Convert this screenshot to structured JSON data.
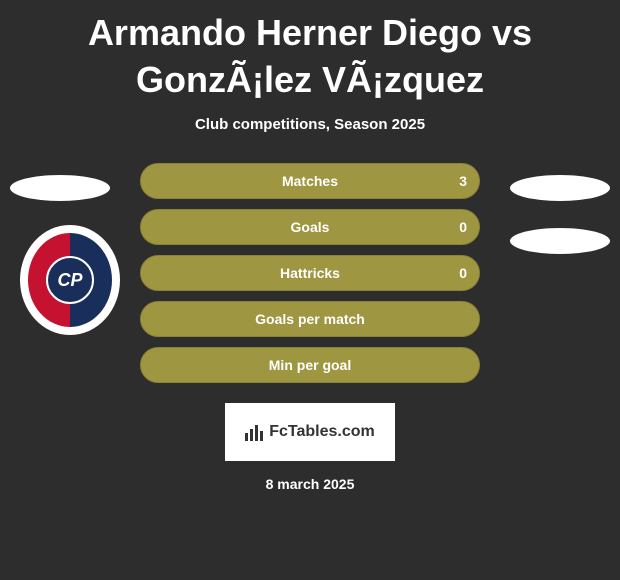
{
  "title": "Armando Herner Diego vs GonzÃ¡lez VÃ¡zquez",
  "subtitle": "Club competitions, Season 2025",
  "stats": [
    {
      "label": "Matches",
      "value": "3"
    },
    {
      "label": "Goals",
      "value": "0"
    },
    {
      "label": "Hattricks",
      "value": "0"
    },
    {
      "label": "Goals per match",
      "value": ""
    },
    {
      "label": "Min per goal",
      "value": ""
    }
  ],
  "badge_text": "FcTables.com",
  "date": "8 march 2025",
  "logo_text": "CP",
  "colors": {
    "background": "#2d2d2d",
    "bar_fill": "#9e9640",
    "bar_border": "#8a8238",
    "text": "#ffffff",
    "badge_bg": "#ffffff",
    "badge_text": "#333333",
    "logo_red": "#c41230",
    "logo_blue": "#1a2e5c"
  }
}
